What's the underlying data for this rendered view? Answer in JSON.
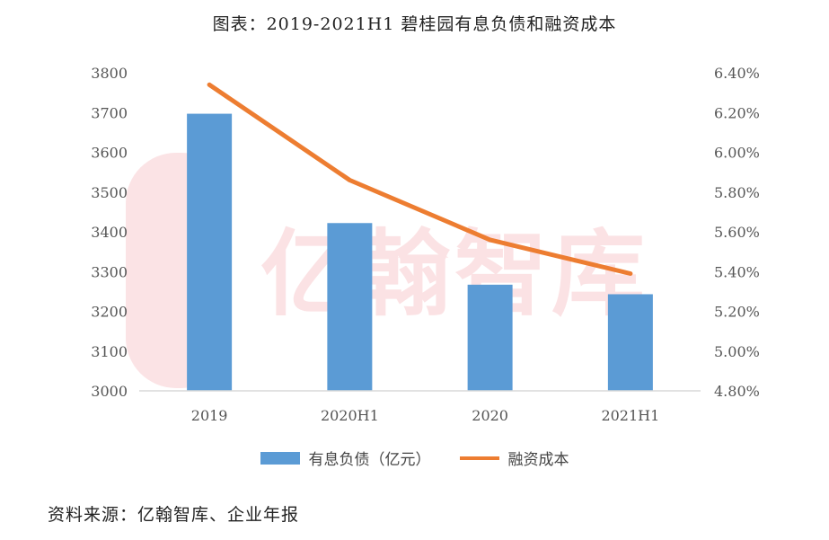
{
  "title": "图表：2019-2021H1 碧桂园有息负债和融资成本",
  "source": "资料来源：亿翰智库、企业年报",
  "watermark": "亿翰智库",
  "colors": {
    "bar": "#5b9bd5",
    "line": "#ed7d31",
    "axis": "#d9d9d9",
    "watermark": "#e8505b"
  },
  "chart_data": {
    "type": "bar+line",
    "categories": [
      "2019",
      "2020H1",
      "2020",
      "2021H1"
    ],
    "series": [
      {
        "name": "有息负债（亿元）",
        "type": "bar",
        "axis": "left",
        "values": [
          3697,
          3422,
          3267,
          3243
        ]
      },
      {
        "name": "融资成本",
        "type": "line",
        "axis": "right",
        "values": [
          6.34,
          5.86,
          5.56,
          5.39
        ]
      }
    ],
    "ylim_left": [
      3000,
      3800
    ],
    "yticks_left": [
      "3000",
      "3100",
      "3200",
      "3300",
      "3400",
      "3500",
      "3600",
      "3700",
      "3800"
    ],
    "ylim_right": [
      4.8,
      6.4
    ],
    "yticks_right": [
      "4.80%",
      "5.00%",
      "5.20%",
      "5.40%",
      "5.60%",
      "5.80%",
      "6.00%",
      "6.20%",
      "6.40%"
    ],
    "grid": false,
    "legend": "bottom"
  }
}
